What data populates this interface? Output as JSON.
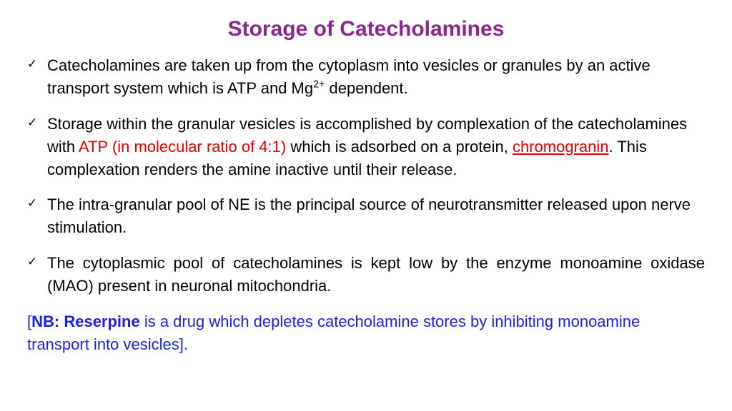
{
  "title": {
    "text": "Storage of Catecholamines",
    "color": "#8e258e",
    "fontsize": 30
  },
  "body": {
    "fontsize": 22,
    "text_color": "#000000",
    "red_color": "#e20000",
    "blue_color": "#1a20e2",
    "bullet_color": "#000000"
  },
  "bullets": [
    {
      "html": "Catecholamines are taken up from the cytoplasm into vesicles or granules by an active transport system which is ATP and Mg<sup>2+</sup> dependent.",
      "justify": false
    },
    {
      "html": "Storage within the granular vesicles is accomplished by complexation of the catecholamines with <span class=\"red\">ATP (in molecular ratio of 4:1)</span> which is adsorbed on a protein, <span class=\"red red-u\">chromogranin</span>. This complexation renders the amine inactive until their release.",
      "justify": false
    },
    {
      "html": "The intra-granular pool of NE is the principal source of neurotransmitter released upon nerve stimulation.",
      "justify": false
    },
    {
      "html": "The cytoplasmic pool of catecholamines is kept low by the enzyme monoamine oxidase (MAO) present in neuronal mitochondria.",
      "justify": true
    }
  ],
  "note": {
    "html": "<span class=\"blue\">[<b>NB: Reserpine</b> is a drug which depletes catecholamine stores by inhibiting monoamine transport into vesicles].</span>"
  }
}
